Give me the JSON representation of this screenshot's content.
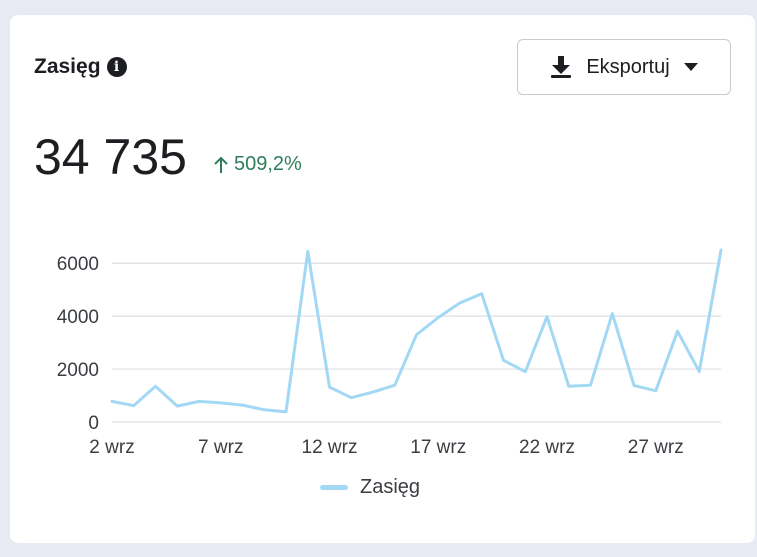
{
  "card": {
    "title": "Zasięg",
    "export_label": "Eksportuj",
    "total": "34 735",
    "delta_percent": "509,2%"
  },
  "colors": {
    "series": "#a3d8f4",
    "delta_green": "#2e7d5b",
    "grid": "#dfe1e6"
  },
  "chart_data": {
    "type": "line",
    "title": "",
    "xlabel": "",
    "ylabel": "",
    "ylim": [
      0,
      6500
    ],
    "yticks": [
      0,
      2000,
      4000,
      6000
    ],
    "ytick_labels": [
      "0",
      "2000",
      "4000",
      "6000"
    ],
    "xtick_labels": [
      "2 wrz",
      "7 wrz",
      "12 wrz",
      "17 wrz",
      "22 wrz",
      "27 wrz"
    ],
    "xtick_days": [
      2,
      7,
      12,
      17,
      22,
      27
    ],
    "x_range": [
      2,
      30
    ],
    "grid": true,
    "legend": "bottom",
    "series": [
      {
        "name": "Zasięg",
        "x": [
          2,
          3,
          4,
          5,
          6,
          7,
          8,
          9,
          10,
          11,
          12,
          13,
          14,
          15,
          16,
          17,
          18,
          19,
          20,
          21,
          22,
          23,
          24,
          25,
          26,
          27,
          28,
          29,
          30
        ],
        "values": [
          780,
          620,
          1350,
          600,
          780,
          720,
          640,
          460,
          380,
          6450,
          1320,
          920,
          1130,
          1390,
          3300,
          3950,
          4500,
          4850,
          2330,
          1900,
          3980,
          1350,
          1390,
          4100,
          1380,
          1180,
          3430,
          1900,
          6500
        ]
      }
    ]
  }
}
